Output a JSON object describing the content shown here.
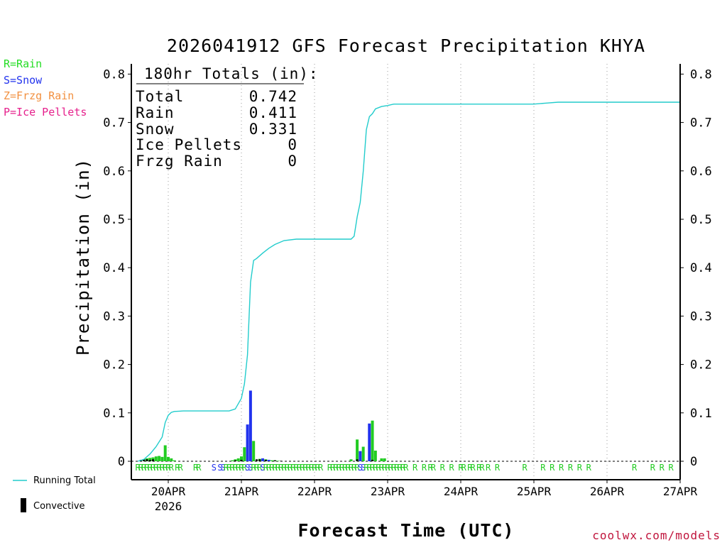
{
  "title": "2026041912 GFS Forecast Precipitation KHYA",
  "legend": {
    "items": [
      {
        "label": "R=Rain",
        "color": "#22dd22"
      },
      {
        "label": "S=Snow",
        "color": "#2233ee"
      },
      {
        "label": "Z=Frzg Rain",
        "color": "#f29040"
      },
      {
        "label": "P=Ice Pellets",
        "color": "#e6208c"
      }
    ],
    "running_total_label": "Running Total",
    "convective_label": "Convective"
  },
  "totals": {
    "header": "180hr Totals (in):",
    "rows": [
      {
        "label": "Total",
        "value": "0.742"
      },
      {
        "label": "Rain",
        "value": "0.411"
      },
      {
        "label": "Snow",
        "value": "0.331"
      },
      {
        "label": "Ice Pellets",
        "value": "0"
      },
      {
        "label": "Frzg Rain",
        "value": "0"
      }
    ]
  },
  "credit": "coolwx.com/models",
  "colors": {
    "rain": "#22cc22",
    "snow": "#2233ee",
    "running_total": "#22cccc",
    "convective": "#000000"
  },
  "chart_data": {
    "type": "bar",
    "title": "2026041912 GFS Forecast Precipitation KHYA",
    "xlabel": "Forecast Time (UTC)",
    "ylabel": "Precipitation (in)",
    "ylim": [
      0,
      0.82
    ],
    "xlim_hours_from_20APR_00Z": [
      -12,
      168
    ],
    "y_ticks": [
      "0",
      "0.1",
      "0.2",
      "0.3",
      "0.4",
      "0.5",
      "0.6",
      "0.7",
      "0.8"
    ],
    "x_ticks": [
      {
        "label": "20APR",
        "sublabel": "2026"
      },
      {
        "label": "21APR"
      },
      {
        "label": "22APR"
      },
      {
        "label": "23APR"
      },
      {
        "label": "24APR"
      },
      {
        "label": "25APR"
      },
      {
        "label": "26APR"
      },
      {
        "label": "27APR"
      }
    ],
    "grid": "vertical dotted at day boundaries",
    "bars_rain": [
      {
        "h": -8,
        "v": 0.004
      },
      {
        "h": -7,
        "v": 0.006
      },
      {
        "h": -6,
        "v": 0.007
      },
      {
        "h": -5,
        "v": 0.008
      },
      {
        "h": -4,
        "v": 0.01
      },
      {
        "h": -3,
        "v": 0.011
      },
      {
        "h": -2,
        "v": 0.009
      },
      {
        "h": -1,
        "v": 0.033
      },
      {
        "h": 0,
        "v": 0.009
      },
      {
        "h": 1,
        "v": 0.006
      },
      {
        "h": 2,
        "v": 0.002
      },
      {
        "h": 21,
        "v": 0.002
      },
      {
        "h": 22,
        "v": 0.004
      },
      {
        "h": 23,
        "v": 0.006
      },
      {
        "h": 24,
        "v": 0.01
      },
      {
        "h": 25,
        "v": 0.029
      },
      {
        "h": 28,
        "v": 0.042
      },
      {
        "h": 30,
        "v": 0.005
      },
      {
        "h": 31,
        "v": 0.005
      },
      {
        "h": 32,
        "v": 0.004
      },
      {
        "h": 34,
        "v": 0.002
      },
      {
        "h": 35,
        "v": 0.002
      },
      {
        "h": 36,
        "v": 0.001
      },
      {
        "h": 60,
        "v": 0.004
      },
      {
        "h": 62,
        "v": 0.045
      },
      {
        "h": 64,
        "v": 0.03
      },
      {
        "h": 67,
        "v": 0.084
      },
      {
        "h": 68,
        "v": 0.022
      },
      {
        "h": 70,
        "v": 0.006
      },
      {
        "h": 71,
        "v": 0.006
      }
    ],
    "bars_snow": [
      {
        "h": 26,
        "v": 0.076
      },
      {
        "h": 27,
        "v": 0.146
      },
      {
        "h": 31,
        "v": 0.006
      },
      {
        "h": 33,
        "v": 0.003
      },
      {
        "h": 63,
        "v": 0.021
      },
      {
        "h": 66,
        "v": 0.078
      }
    ],
    "convective_bars": [
      {
        "h": -9,
        "v": 0.003
      },
      {
        "h": -8,
        "v": 0.004
      },
      {
        "h": -7,
        "v": 0.004
      },
      {
        "h": -6,
        "v": 0.003
      },
      {
        "h": -5,
        "v": 0.004
      },
      {
        "h": 22,
        "v": 0.002
      },
      {
        "h": 24,
        "v": 0.003
      },
      {
        "h": 29,
        "v": 0.004
      },
      {
        "h": 30,
        "v": 0.004
      },
      {
        "h": 32,
        "v": 0.003
      },
      {
        "h": 35,
        "v": 0.002
      },
      {
        "h": 37,
        "v": 0.001
      },
      {
        "h": 62,
        "v": 0.004
      },
      {
        "h": 67,
        "v": 0.003
      }
    ],
    "running_total": [
      {
        "h": -10,
        "v": 0.0
      },
      {
        "h": -8,
        "v": 0.004
      },
      {
        "h": -6,
        "v": 0.015
      },
      {
        "h": -4,
        "v": 0.03
      },
      {
        "h": -2,
        "v": 0.05
      },
      {
        "h": -1,
        "v": 0.08
      },
      {
        "h": 0,
        "v": 0.095
      },
      {
        "h": 1,
        "v": 0.101
      },
      {
        "h": 2,
        "v": 0.103
      },
      {
        "h": 5,
        "v": 0.104
      },
      {
        "h": 20,
        "v": 0.104
      },
      {
        "h": 22,
        "v": 0.108
      },
      {
        "h": 24,
        "v": 0.13
      },
      {
        "h": 25,
        "v": 0.16
      },
      {
        "h": 26,
        "v": 0.22
      },
      {
        "h": 27,
        "v": 0.37
      },
      {
        "h": 28,
        "v": 0.415
      },
      {
        "h": 29,
        "v": 0.419
      },
      {
        "h": 31,
        "v": 0.43
      },
      {
        "h": 33,
        "v": 0.44
      },
      {
        "h": 35,
        "v": 0.448
      },
      {
        "h": 38,
        "v": 0.456
      },
      {
        "h": 42,
        "v": 0.459
      },
      {
        "h": 60,
        "v": 0.459
      },
      {
        "h": 61,
        "v": 0.465
      },
      {
        "h": 62,
        "v": 0.505
      },
      {
        "h": 63,
        "v": 0.535
      },
      {
        "h": 64,
        "v": 0.6
      },
      {
        "h": 65,
        "v": 0.685
      },
      {
        "h": 66,
        "v": 0.712
      },
      {
        "h": 67,
        "v": 0.718
      },
      {
        "h": 68,
        "v": 0.728
      },
      {
        "h": 70,
        "v": 0.733
      },
      {
        "h": 72,
        "v": 0.735
      },
      {
        "h": 74,
        "v": 0.738
      },
      {
        "h": 120,
        "v": 0.738
      },
      {
        "h": 124,
        "v": 0.74
      },
      {
        "h": 128,
        "v": 0.742
      },
      {
        "h": 168,
        "v": 0.742
      }
    ],
    "ptype_markers": [
      {
        "h": -10,
        "t": "R"
      },
      {
        "h": -9,
        "t": "R"
      },
      {
        "h": -8,
        "t": "R"
      },
      {
        "h": -7,
        "t": "R"
      },
      {
        "h": -6,
        "t": "R"
      },
      {
        "h": -5,
        "t": "R"
      },
      {
        "h": -4,
        "t": "R"
      },
      {
        "h": -3,
        "t": "R"
      },
      {
        "h": -2,
        "t": "R"
      },
      {
        "h": -1,
        "t": "R"
      },
      {
        "h": 0,
        "t": "R"
      },
      {
        "h": 1,
        "t": "R"
      },
      {
        "h": 3,
        "t": "R"
      },
      {
        "h": 4,
        "t": "R"
      },
      {
        "h": 9,
        "t": "R"
      },
      {
        "h": 10,
        "t": "R"
      },
      {
        "h": 15,
        "t": "S"
      },
      {
        "h": 17,
        "t": "S"
      },
      {
        "h": 18,
        "t": "S"
      },
      {
        "h": 19,
        "t": "R"
      },
      {
        "h": 20,
        "t": "R"
      },
      {
        "h": 21,
        "t": "R"
      },
      {
        "h": 22,
        "t": "R"
      },
      {
        "h": 23,
        "t": "R"
      },
      {
        "h": 24,
        "t": "R"
      },
      {
        "h": 25,
        "t": "R"
      },
      {
        "h": 26,
        "t": "S"
      },
      {
        "h": 27,
        "t": "S"
      },
      {
        "h": 28,
        "t": "R"
      },
      {
        "h": 29,
        "t": "R"
      },
      {
        "h": 30,
        "t": "R"
      },
      {
        "h": 31,
        "t": "S"
      },
      {
        "h": 32,
        "t": "R"
      },
      {
        "h": 33,
        "t": "R"
      },
      {
        "h": 34,
        "t": "R"
      },
      {
        "h": 35,
        "t": "R"
      },
      {
        "h": 36,
        "t": "R"
      },
      {
        "h": 37,
        "t": "R"
      },
      {
        "h": 38,
        "t": "R"
      },
      {
        "h": 39,
        "t": "R"
      },
      {
        "h": 40,
        "t": "R"
      },
      {
        "h": 41,
        "t": "R"
      },
      {
        "h": 42,
        "t": "R"
      },
      {
        "h": 43,
        "t": "R"
      },
      {
        "h": 44,
        "t": "R"
      },
      {
        "h": 45,
        "t": "R"
      },
      {
        "h": 46,
        "t": "R"
      },
      {
        "h": 47,
        "t": "R"
      },
      {
        "h": 48,
        "t": "R"
      },
      {
        "h": 49,
        "t": "R"
      },
      {
        "h": 50,
        "t": "R"
      },
      {
        "h": 53,
        "t": "R"
      },
      {
        "h": 54,
        "t": "R"
      },
      {
        "h": 55,
        "t": "R"
      },
      {
        "h": 56,
        "t": "R"
      },
      {
        "h": 57,
        "t": "R"
      },
      {
        "h": 58,
        "t": "R"
      },
      {
        "h": 59,
        "t": "R"
      },
      {
        "h": 60,
        "t": "R"
      },
      {
        "h": 61,
        "t": "R"
      },
      {
        "h": 62,
        "t": "R"
      },
      {
        "h": 63,
        "t": "S"
      },
      {
        "h": 64,
        "t": "S"
      },
      {
        "h": 65,
        "t": "R"
      },
      {
        "h": 66,
        "t": "R"
      },
      {
        "h": 67,
        "t": "R"
      },
      {
        "h": 68,
        "t": "R"
      },
      {
        "h": 69,
        "t": "R"
      },
      {
        "h": 70,
        "t": "R"
      },
      {
        "h": 71,
        "t": "R"
      },
      {
        "h": 72,
        "t": "R"
      },
      {
        "h": 73,
        "t": "R"
      },
      {
        "h": 74,
        "t": "R"
      },
      {
        "h": 75,
        "t": "R"
      },
      {
        "h": 76,
        "t": "R"
      },
      {
        "h": 77,
        "t": "R"
      },
      {
        "h": 78,
        "t": "R"
      },
      {
        "h": 81,
        "t": "R"
      },
      {
        "h": 84,
        "t": "R"
      },
      {
        "h": 86,
        "t": "R"
      },
      {
        "h": 87,
        "t": "R"
      },
      {
        "h": 90,
        "t": "R"
      },
      {
        "h": 93,
        "t": "R"
      },
      {
        "h": 96,
        "t": "R"
      },
      {
        "h": 97,
        "t": "R"
      },
      {
        "h": 99,
        "t": "R"
      },
      {
        "h": 100,
        "t": "R"
      },
      {
        "h": 102,
        "t": "R"
      },
      {
        "h": 103,
        "t": "R"
      },
      {
        "h": 105,
        "t": "R"
      },
      {
        "h": 108,
        "t": "R"
      },
      {
        "h": 117,
        "t": "R"
      },
      {
        "h": 123,
        "t": "R"
      },
      {
        "h": 126,
        "t": "R"
      },
      {
        "h": 129,
        "t": "R"
      },
      {
        "h": 132,
        "t": "R"
      },
      {
        "h": 135,
        "t": "R"
      },
      {
        "h": 138,
        "t": "R"
      },
      {
        "h": 153,
        "t": "R"
      },
      {
        "h": 159,
        "t": "R"
      },
      {
        "h": 162,
        "t": "R"
      },
      {
        "h": 165,
        "t": "R"
      }
    ]
  }
}
